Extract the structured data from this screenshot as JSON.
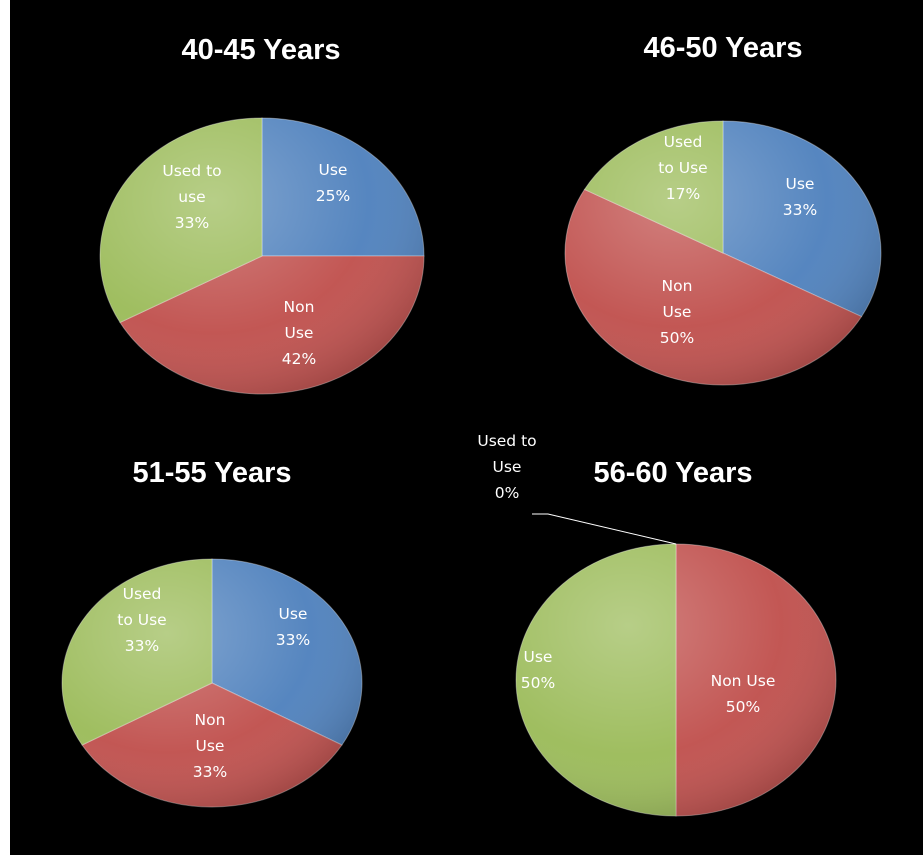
{
  "chart_data": [
    {
      "type": "pie",
      "title": "40-45 Years",
      "slices": [
        {
          "label_lines": [
            "Use",
            "25%"
          ],
          "value": 25,
          "color": "#4f81bd"
        },
        {
          "label_lines": [
            "Non",
            "Use",
            "42%"
          ],
          "value": 42,
          "color": "#c0504d"
        },
        {
          "label_lines": [
            "Used to",
            "use",
            "33%"
          ],
          "value": 33,
          "color": "#9bbb59"
        }
      ]
    },
    {
      "type": "pie",
      "title": "46-50 Years",
      "slices": [
        {
          "label_lines": [
            "Use",
            "33%"
          ],
          "value": 33,
          "color": "#4f81bd"
        },
        {
          "label_lines": [
            "Non",
            "Use",
            "50%"
          ],
          "value": 50,
          "color": "#c0504d"
        },
        {
          "label_lines": [
            "Used",
            "to Use",
            "17%"
          ],
          "value": 17,
          "color": "#9bbb59"
        }
      ]
    },
    {
      "type": "pie",
      "title": "51-55 Years",
      "slices": [
        {
          "label_lines": [
            "Use",
            "33%"
          ],
          "value": 33,
          "color": "#4f81bd"
        },
        {
          "label_lines": [
            "Non",
            "Use",
            "33%"
          ],
          "value": 33,
          "color": "#c0504d"
        },
        {
          "label_lines": [
            "Used",
            "to Use",
            "33%"
          ],
          "value": 33,
          "color": "#9bbb59"
        }
      ]
    },
    {
      "type": "pie",
      "title": "56-60 Years",
      "slices": [
        {
          "label_lines": [
            "Non Use",
            "50%"
          ],
          "value": 50,
          "color": "#c0504d"
        },
        {
          "label_lines": [
            "Used to",
            "Use",
            "0%"
          ],
          "value": 0,
          "color": "#9bbb59"
        },
        {
          "label_lines": [
            "Use",
            "50%"
          ],
          "value": 50,
          "color": "#9bbb59"
        }
      ]
    }
  ],
  "colors": {
    "background": "#000000",
    "text": "#ffffff"
  }
}
